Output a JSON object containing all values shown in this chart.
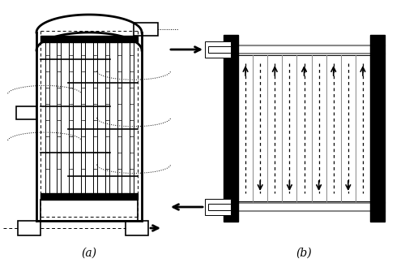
{
  "fig_width": 5.0,
  "fig_height": 3.24,
  "dpi": 100,
  "bg_color": "#ffffff",
  "label_a": "(a)",
  "label_b": "(b)"
}
